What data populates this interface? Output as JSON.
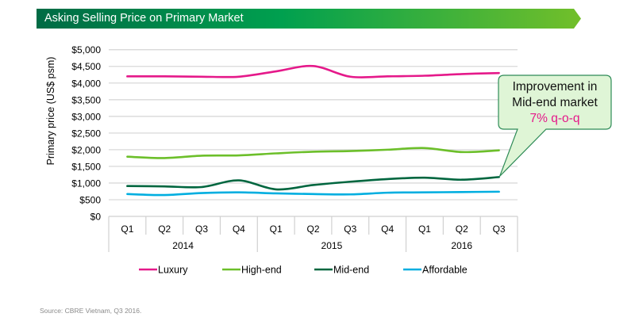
{
  "header": {
    "title": "Asking Selling Price on Primary Market",
    "gradient_start": "#006b45",
    "gradient_mid": "#00a04f",
    "gradient_end": "#72bf2a"
  },
  "chart_data": {
    "type": "line",
    "title": "Asking Selling Price on Primary Market",
    "xlabel": "",
    "ylabel": "Primary price (US$ psm)",
    "ylim": [
      0,
      5000
    ],
    "yticks": [
      0,
      500,
      1000,
      1500,
      2000,
      2500,
      3000,
      3500,
      4000,
      4500,
      5000
    ],
    "ytick_labels": [
      "$0",
      "$500",
      "$1,000",
      "$1,500",
      "$2,000",
      "$2,500",
      "$3,000",
      "$3,500",
      "$4,000",
      "$4,500",
      "$5,000"
    ],
    "grid": true,
    "categories": [
      "Q1",
      "Q2",
      "Q3",
      "Q4",
      "Q1",
      "Q2",
      "Q3",
      "Q4",
      "Q1",
      "Q2",
      "Q3"
    ],
    "groups": [
      {
        "label": "2014",
        "count": 4
      },
      {
        "label": "2015",
        "count": 4
      },
      {
        "label": "2016",
        "count": 3
      }
    ],
    "legend_position": "bottom",
    "series": [
      {
        "name": "Luxury",
        "color": "#e5198a",
        "values": [
          4200,
          4200,
          4190,
          4190,
          4350,
          4510,
          4190,
          4200,
          4220,
          4270,
          4300
        ]
      },
      {
        "name": "High-end",
        "color": "#6cbf2a",
        "values": [
          1790,
          1750,
          1820,
          1830,
          1890,
          1940,
          1960,
          2000,
          2050,
          1930,
          1980
        ]
      },
      {
        "name": "Mid-end",
        "color": "#00663f",
        "values": [
          910,
          900,
          880,
          1080,
          810,
          940,
          1040,
          1120,
          1160,
          1100,
          1180
        ]
      },
      {
        "name": "Affordable",
        "color": "#00aee0",
        "values": [
          670,
          640,
          700,
          720,
          690,
          670,
          660,
          710,
          720,
          730,
          740
        ]
      }
    ],
    "annotation": {
      "line1": "Improvement in",
      "line2": "Mid-end market",
      "highlight": "7% q-o-q",
      "points_to": {
        "series": "Mid-end",
        "index": 10
      },
      "fill": "#dff5d6",
      "border": "#2e8b57"
    }
  },
  "footer": {
    "source": "Source: CBRE Vietnam, Q3 2016."
  }
}
